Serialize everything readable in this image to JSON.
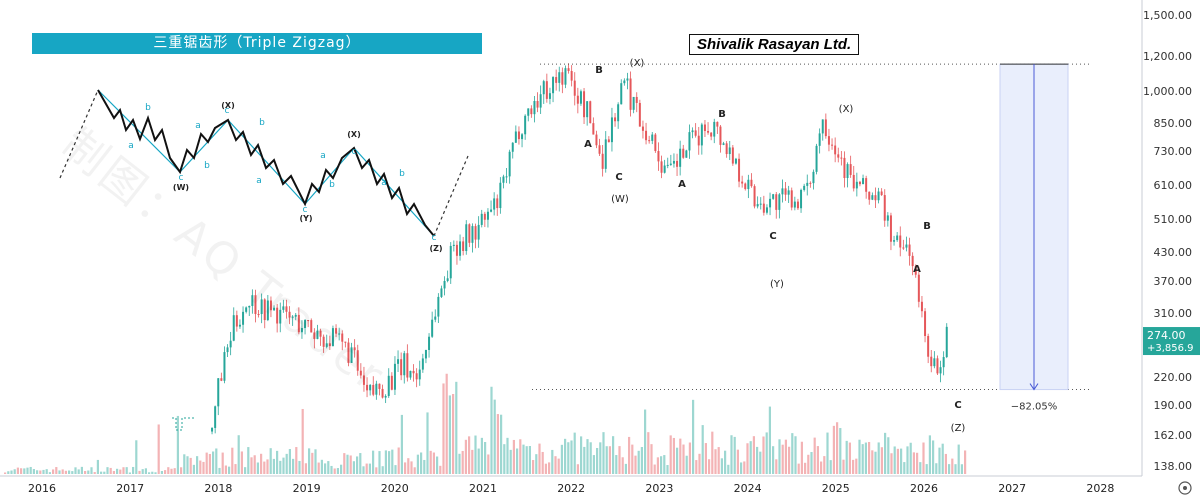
{
  "banner": {
    "text": "三重锯齿形（Triple Zigzag）"
  },
  "title": "Shivalik Rasayan Ltd.",
  "watermark": "制图：AQ Trader",
  "colors": {
    "up": "#26a69a",
    "down": "#e5575a",
    "banner": "#17a6c4",
    "schematic_line": "#17a6c4",
    "schematic_wave": "#111111",
    "price_box": "#26a69a",
    "range_fill": "#e9eefc",
    "range_line": "#4a5bd6"
  },
  "price_axis": {
    "ticks": [
      "1,500.00",
      "1,200.00",
      "1,000.00",
      "850.00",
      "730.00",
      "610.00",
      "510.00",
      "430.00",
      "370.00",
      "310.00",
      "220.00",
      "190.00",
      "162.00",
      "138.00"
    ],
    "current_price": "274.00",
    "current_change": "+3,856.9"
  },
  "time_axis": {
    "labels": [
      "2016",
      "2017",
      "2018",
      "2019",
      "2020",
      "2021",
      "2022",
      "2023",
      "2024",
      "2025",
      "2026",
      "2027",
      "2028"
    ]
  },
  "measure": {
    "label": "−82.05%"
  },
  "schematic_labels": {
    "W": "(W)",
    "X1": "(X)",
    "Y": "(Y)",
    "X2": "(X)",
    "Z": "(Z)",
    "a": "a",
    "b": "b",
    "c": "c"
  },
  "wave_labels": {
    "W_B": "B",
    "W_A": "A",
    "W_C": "C",
    "W": "(W)",
    "X1": "(X)",
    "Y_A": "A",
    "Y_B": "B",
    "Y_C": "C",
    "Y": "(Y)",
    "X2": "(X)",
    "Z_A": "A",
    "Z_B": "B",
    "Z_C": "C",
    "Z": "(Z)"
  },
  "chart_data": {
    "type": "candlestick",
    "title": "Shivalik Rasayan Ltd.",
    "y_scale": "log",
    "y_ticks": [
      1500,
      1200,
      1000,
      850,
      730,
      610,
      510,
      430,
      370,
      310,
      220,
      190,
      162,
      138
    ],
    "x_ticks": [
      "2016",
      "2017",
      "2018",
      "2019",
      "2020",
      "2021",
      "2022",
      "2023",
      "2024",
      "2025",
      "2026",
      "2027",
      "2028"
    ],
    "last_price": 274,
    "last_change": "+3,856.9",
    "price_path": [
      [
        "2017-12",
        165
      ],
      [
        "2018-01",
        215
      ],
      [
        "2018-03",
        290
      ],
      [
        "2018-05",
        335
      ],
      [
        "2018-07",
        320
      ],
      [
        "2018-11",
        300
      ],
      [
        "2019-02",
        280
      ],
      [
        "2019-05",
        265
      ],
      [
        "2019-07",
        250
      ],
      [
        "2019-09",
        198
      ],
      [
        "2019-12",
        215
      ],
      [
        "2020-02",
        235
      ],
      [
        "2020-04",
        220
      ],
      [
        "2020-06",
        300
      ],
      [
        "2020-07",
        345
      ],
      [
        "2020-09",
        450
      ],
      [
        "2020-12",
        480
      ],
      [
        "2021-03",
        560
      ],
      [
        "2021-06",
        850
      ],
      [
        "2021-09",
        1000
      ],
      [
        "2021-12",
        1100
      ],
      [
        "2022-03",
        900
      ],
      [
        "2022-05",
        700
      ],
      [
        "2022-08",
        1050
      ],
      [
        "2022-12",
        760
      ],
      [
        "2023-02",
        640
      ],
      [
        "2023-05",
        760
      ],
      [
        "2023-08",
        850
      ],
      [
        "2023-11",
        700
      ],
      [
        "2024-02",
        560
      ],
      [
        "2024-05",
        560
      ],
      [
        "2024-09",
        580
      ],
      [
        "2024-11",
        880
      ],
      [
        "2025-03",
        620
      ],
      [
        "2025-07",
        560
      ],
      [
        "2025-09",
        440
      ],
      [
        "2025-11",
        440
      ],
      [
        "2026-01",
        270
      ],
      [
        "2026-03",
        215
      ],
      [
        "2026-04",
        274
      ]
    ],
    "annotations": [
      {
        "text": "B",
        "x": "2021-12",
        "kind": "wave"
      },
      {
        "text": "A",
        "x": "2022-02",
        "kind": "wave"
      },
      {
        "text": "C",
        "x": "2022-05",
        "kind": "wave"
      },
      {
        "text": "(W)",
        "x": "2022-05",
        "kind": "degree"
      },
      {
        "text": "(X)",
        "x": "2022-08",
        "kind": "degree"
      },
      {
        "text": "A",
        "x": "2023-02",
        "kind": "wave"
      },
      {
        "text": "B",
        "x": "2023-08",
        "kind": "wave"
      },
      {
        "text": "C",
        "x": "2024-02",
        "kind": "wave"
      },
      {
        "text": "(Y)",
        "x": "2024-02",
        "kind": "degree"
      },
      {
        "text": "(X)",
        "x": "2024-11",
        "kind": "degree"
      },
      {
        "text": "A",
        "x": "2025-09",
        "kind": "wave"
      },
      {
        "text": "B",
        "x": "2025-11",
        "kind": "wave"
      },
      {
        "text": "C",
        "x": "2026-03",
        "kind": "wave"
      },
      {
        "text": "(Z)",
        "x": "2026-03",
        "kind": "degree"
      }
    ],
    "measurement": {
      "from": 1150,
      "to": 206,
      "label": "−82.05%"
    }
  }
}
